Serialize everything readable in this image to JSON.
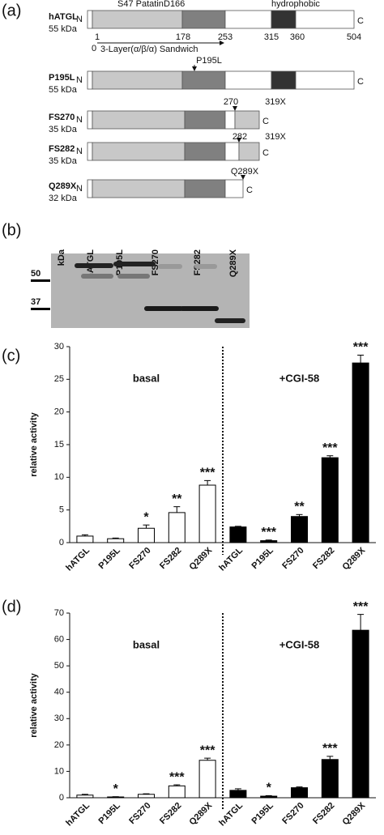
{
  "diagram": {
    "panel": "(a)",
    "top_labels": [
      "S47 Patatin",
      "D166",
      "hydrophobic"
    ],
    "positions": [
      "1",
      "178",
      "253",
      "315",
      "360",
      "504"
    ],
    "domain_start": "0",
    "domain": "3-Layer(α/β/α) Sandwich",
    "n_label": "N",
    "c_label": "C",
    "proteins": [
      {
        "name": "hATGL",
        "mass": "55 kDa",
        "marks": []
      },
      {
        "name": "P195L",
        "mass": "55 kDa",
        "marks": [
          "P195L"
        ]
      },
      {
        "name": "FS270",
        "mass": "35 kDa",
        "marks": [
          "270",
          "319X"
        ]
      },
      {
        "name": "FS282",
        "mass": "35 kDa",
        "marks": [
          "282",
          "319X"
        ]
      },
      {
        "name": "Q289X",
        "mass": "32 kDa",
        "marks": [
          "Q289X"
        ]
      }
    ]
  },
  "blot": {
    "panel": "(b)",
    "unit": "kDa",
    "lanes": [
      "hATGL",
      "P195L",
      "FS270",
      "FS282",
      "Q289X"
    ],
    "markers": [
      "50",
      "37"
    ]
  },
  "chart_data": [
    {
      "type": "bar",
      "panel": "(c)",
      "ylabel": "relative activity",
      "groups": [
        "basal",
        "+CGI-58"
      ],
      "categories": [
        "hATGL",
        "P195L",
        "FS270",
        "FS282",
        "Q289X",
        "hATGL",
        "P195L",
        "FS270",
        "FS282",
        "Q289X"
      ],
      "values": [
        1.0,
        0.6,
        2.2,
        4.6,
        8.8,
        2.4,
        0.3,
        4.0,
        13.0,
        27.5
      ],
      "errors": [
        0.2,
        0.1,
        0.5,
        0.9,
        0.7,
        0.1,
        0.1,
        0.3,
        0.3,
        1.2
      ],
      "annotations": [
        null,
        null,
        "*",
        "**",
        "***",
        null,
        "***",
        "**",
        "***",
        "***"
      ],
      "colors": [
        "#ffffff",
        "#ffffff",
        "#ffffff",
        "#ffffff",
        "#ffffff",
        "#000000",
        "#000000",
        "#000000",
        "#000000",
        "#000000"
      ],
      "ylim": [
        0,
        30
      ],
      "yticks": [
        0,
        5,
        10,
        15,
        20,
        25,
        30
      ]
    },
    {
      "type": "bar",
      "panel": "(d)",
      "ylabel": "relative activity",
      "groups": [
        "basal",
        "+CGI-58"
      ],
      "categories": [
        "hATGL",
        "P195L",
        "FS270",
        "FS282",
        "Q289X",
        "hATGL",
        "P195L",
        "FS270",
        "FS282",
        "Q289X"
      ],
      "values": [
        1.0,
        0.3,
        1.3,
        4.5,
        14.2,
        2.8,
        0.6,
        3.8,
        14.5,
        63.5
      ],
      "errors": [
        0.3,
        0.1,
        0.2,
        0.4,
        0.8,
        0.6,
        0.2,
        0.3,
        1.2,
        6.0
      ],
      "annotations": [
        null,
        "*",
        null,
        "***",
        "***",
        null,
        "*",
        null,
        "***",
        "***"
      ],
      "colors": [
        "#ffffff",
        "#ffffff",
        "#ffffff",
        "#ffffff",
        "#ffffff",
        "#000000",
        "#000000",
        "#000000",
        "#000000",
        "#000000"
      ],
      "ylim": [
        0,
        70
      ],
      "yticks": [
        0,
        10,
        20,
        30,
        40,
        50,
        60,
        70
      ]
    }
  ]
}
